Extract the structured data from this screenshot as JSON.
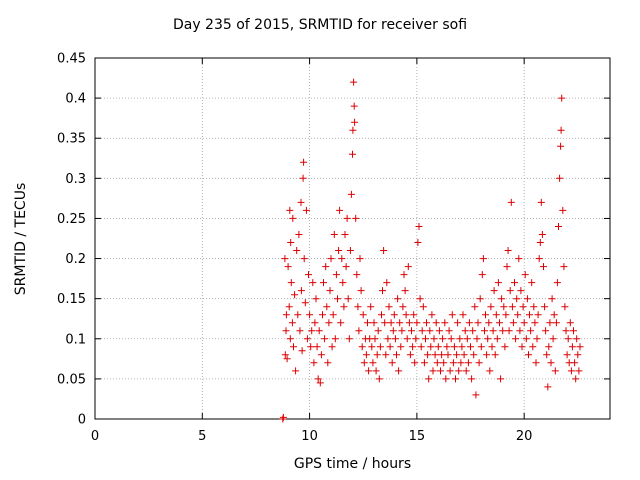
{
  "chart_data": {
    "type": "scatter",
    "title": "Day 235 of 2015, SRMTID for receiver sofi",
    "xlabel": "GPS time / hours",
    "ylabel": "SRMTID / TECUs",
    "xlim": [
      0,
      24
    ],
    "ylim": [
      0,
      0.45
    ],
    "xticks": [
      "0",
      "5",
      "10",
      "15",
      "20"
    ],
    "xtick_values": [
      0,
      5,
      10,
      15,
      20
    ],
    "yticks": [
      "0",
      "0.05",
      "0.1",
      "0.15",
      "0.2",
      "0.25",
      "0.3",
      "0.35",
      "0.4",
      "0.45"
    ],
    "ytick_values": [
      0,
      0.05,
      0.1,
      0.15,
      0.2,
      0.25,
      0.3,
      0.35,
      0.4,
      0.45
    ],
    "grid": true,
    "marker": "+",
    "color": "#dd0000",
    "series": [
      {
        "name": "SRMTID",
        "points": [
          [
            8.75,
            0.0
          ],
          [
            8.78,
            0.002
          ],
          [
            8.85,
            0.2
          ],
          [
            8.87,
            0.08
          ],
          [
            8.9,
            0.11
          ],
          [
            8.92,
            0.13
          ],
          [
            8.95,
            0.075
          ],
          [
            9.0,
            0.19
          ],
          [
            9.05,
            0.14
          ],
          [
            9.08,
            0.26
          ],
          [
            9.1,
            0.1
          ],
          [
            9.12,
            0.22
          ],
          [
            9.15,
            0.17
          ],
          [
            9.2,
            0.12
          ],
          [
            9.22,
            0.25
          ],
          [
            9.25,
            0.09
          ],
          [
            9.3,
            0.155
          ],
          [
            9.35,
            0.06
          ],
          [
            9.4,
            0.21
          ],
          [
            9.45,
            0.13
          ],
          [
            9.5,
            0.23
          ],
          [
            9.55,
            0.11
          ],
          [
            9.6,
            0.27
          ],
          [
            9.62,
            0.16
          ],
          [
            9.65,
            0.085
          ],
          [
            9.7,
            0.3
          ],
          [
            9.72,
            0.32
          ],
          [
            9.75,
            0.2
          ],
          [
            9.8,
            0.145
          ],
          [
            9.85,
            0.26
          ],
          [
            9.9,
            0.1
          ],
          [
            9.95,
            0.18
          ],
          [
            10.0,
            0.13
          ],
          [
            10.05,
            0.09
          ],
          [
            10.1,
            0.11
          ],
          [
            10.15,
            0.17
          ],
          [
            10.2,
            0.07
          ],
          [
            10.25,
            0.12
          ],
          [
            10.3,
            0.15
          ],
          [
            10.35,
            0.09
          ],
          [
            10.4,
            0.05
          ],
          [
            10.45,
            0.11
          ],
          [
            10.5,
            0.045
          ],
          [
            10.55,
            0.08
          ],
          [
            10.6,
            0.13
          ],
          [
            10.65,
            0.17
          ],
          [
            10.7,
            0.1
          ],
          [
            10.75,
            0.19
          ],
          [
            10.8,
            0.14
          ],
          [
            10.85,
            0.07
          ],
          [
            10.9,
            0.12
          ],
          [
            10.95,
            0.16
          ],
          [
            11.0,
            0.2
          ],
          [
            11.05,
            0.09
          ],
          [
            11.1,
            0.13
          ],
          [
            11.15,
            0.23
          ],
          [
            11.2,
            0.1
          ],
          [
            11.25,
            0.18
          ],
          [
            11.3,
            0.15
          ],
          [
            11.35,
            0.21
          ],
          [
            11.4,
            0.26
          ],
          [
            11.45,
            0.12
          ],
          [
            11.5,
            0.2
          ],
          [
            11.55,
            0.17
          ],
          [
            11.6,
            0.14
          ],
          [
            11.65,
            0.23
          ],
          [
            11.7,
            0.19
          ],
          [
            11.75,
            0.25
          ],
          [
            11.8,
            0.15
          ],
          [
            11.85,
            0.1
          ],
          [
            11.9,
            0.21
          ],
          [
            11.95,
            0.28
          ],
          [
            12.0,
            0.33
          ],
          [
            12.02,
            0.36
          ],
          [
            12.05,
            0.42
          ],
          [
            12.08,
            0.39
          ],
          [
            12.1,
            0.37
          ],
          [
            12.15,
            0.25
          ],
          [
            12.2,
            0.18
          ],
          [
            12.25,
            0.14
          ],
          [
            12.3,
            0.11
          ],
          [
            12.35,
            0.2
          ],
          [
            12.4,
            0.16
          ],
          [
            12.45,
            0.09
          ],
          [
            12.5,
            0.13
          ],
          [
            12.55,
            0.07
          ],
          [
            12.6,
            0.1
          ],
          [
            12.65,
            0.08
          ],
          [
            12.7,
            0.12
          ],
          [
            12.75,
            0.06
          ],
          [
            12.8,
            0.1
          ],
          [
            12.85,
            0.14
          ],
          [
            12.9,
            0.09
          ],
          [
            12.95,
            0.07
          ],
          [
            13.0,
            0.12
          ],
          [
            13.05,
            0.1
          ],
          [
            13.1,
            0.06
          ],
          [
            13.15,
            0.08
          ],
          [
            13.2,
            0.11
          ],
          [
            13.25,
            0.05
          ],
          [
            13.3,
            0.09
          ],
          [
            13.35,
            0.13
          ],
          [
            13.4,
            0.16
          ],
          [
            13.45,
            0.21
          ],
          [
            13.5,
            0.12
          ],
          [
            13.55,
            0.08
          ],
          [
            13.6,
            0.17
          ],
          [
            13.65,
            0.1
          ],
          [
            13.7,
            0.14
          ],
          [
            13.75,
            0.09
          ],
          [
            13.8,
            0.12
          ],
          [
            13.85,
            0.07
          ],
          [
            13.9,
            0.11
          ],
          [
            13.95,
            0.13
          ],
          [
            14.0,
            0.1
          ],
          [
            14.05,
            0.08
          ],
          [
            14.1,
            0.15
          ],
          [
            14.15,
            0.06
          ],
          [
            14.2,
            0.12
          ],
          [
            14.25,
            0.09
          ],
          [
            14.3,
            0.11
          ],
          [
            14.35,
            0.14
          ],
          [
            14.4,
            0.18
          ],
          [
            14.45,
            0.16
          ],
          [
            14.5,
            0.13
          ],
          [
            14.55,
            0.1
          ],
          [
            14.6,
            0.19
          ],
          [
            14.65,
            0.12
          ],
          [
            14.7,
            0.08
          ],
          [
            14.75,
            0.11
          ],
          [
            14.8,
            0.09
          ],
          [
            14.85,
            0.13
          ],
          [
            14.9,
            0.07
          ],
          [
            14.95,
            0.1
          ],
          [
            15.0,
            0.12
          ],
          [
            15.05,
            0.22
          ],
          [
            15.1,
            0.24
          ],
          [
            15.15,
            0.15
          ],
          [
            15.2,
            0.09
          ],
          [
            15.25,
            0.11
          ],
          [
            15.3,
            0.14
          ],
          [
            15.35,
            0.07
          ],
          [
            15.4,
            0.1
          ],
          [
            15.45,
            0.12
          ],
          [
            15.5,
            0.08
          ],
          [
            15.55,
            0.05
          ],
          [
            15.6,
            0.11
          ],
          [
            15.65,
            0.09
          ],
          [
            15.7,
            0.13
          ],
          [
            15.75,
            0.06
          ],
          [
            15.8,
            0.1
          ],
          [
            15.85,
            0.08
          ],
          [
            15.9,
            0.12
          ],
          [
            15.95,
            0.07
          ],
          [
            16.0,
            0.09
          ],
          [
            16.05,
            0.11
          ],
          [
            16.1,
            0.06
          ],
          [
            16.15,
            0.08
          ],
          [
            16.2,
            0.1
          ],
          [
            16.25,
            0.07
          ],
          [
            16.3,
            0.12
          ],
          [
            16.35,
            0.05
          ],
          [
            16.4,
            0.09
          ],
          [
            16.45,
            0.08
          ],
          [
            16.5,
            0.11
          ],
          [
            16.55,
            0.06
          ],
          [
            16.6,
            0.1
          ],
          [
            16.65,
            0.13
          ],
          [
            16.7,
            0.07
          ],
          [
            16.75,
            0.09
          ],
          [
            16.8,
            0.05
          ],
          [
            16.85,
            0.08
          ],
          [
            16.9,
            0.12
          ],
          [
            16.95,
            0.06
          ],
          [
            17.0,
            0.1
          ],
          [
            17.05,
            0.07
          ],
          [
            17.1,
            0.09
          ],
          [
            17.15,
            0.13
          ],
          [
            17.2,
            0.08
          ],
          [
            17.25,
            0.11
          ],
          [
            17.3,
            0.06
          ],
          [
            17.35,
            0.1
          ],
          [
            17.4,
            0.07
          ],
          [
            17.45,
            0.12
          ],
          [
            17.5,
            0.09
          ],
          [
            17.55,
            0.05
          ],
          [
            17.6,
            0.11
          ],
          [
            17.65,
            0.08
          ],
          [
            17.7,
            0.14
          ],
          [
            17.75,
            0.03
          ],
          [
            17.8,
            0.1
          ],
          [
            17.85,
            0.12
          ],
          [
            17.9,
            0.07
          ],
          [
            17.95,
            0.15
          ],
          [
            18.0,
            0.09
          ],
          [
            18.05,
            0.18
          ],
          [
            18.1,
            0.2
          ],
          [
            18.15,
            0.11
          ],
          [
            18.2,
            0.13
          ],
          [
            18.25,
            0.08
          ],
          [
            18.3,
            0.1
          ],
          [
            18.35,
            0.12
          ],
          [
            18.4,
            0.06
          ],
          [
            18.45,
            0.14
          ],
          [
            18.5,
            0.09
          ],
          [
            18.55,
            0.11
          ],
          [
            18.6,
            0.16
          ],
          [
            18.65,
            0.08
          ],
          [
            18.7,
            0.13
          ],
          [
            18.75,
            0.1
          ],
          [
            18.8,
            0.17
          ],
          [
            18.85,
            0.12
          ],
          [
            18.9,
            0.05
          ],
          [
            18.95,
            0.15
          ],
          [
            19.0,
            0.11
          ],
          [
            19.05,
            0.14
          ],
          [
            19.1,
            0.09
          ],
          [
            19.15,
            0.13
          ],
          [
            19.2,
            0.19
          ],
          [
            19.25,
            0.21
          ],
          [
            19.3,
            0.11
          ],
          [
            19.35,
            0.16
          ],
          [
            19.4,
            0.27
          ],
          [
            19.45,
            0.14
          ],
          [
            19.5,
            0.12
          ],
          [
            19.55,
            0.17
          ],
          [
            19.6,
            0.1
          ],
          [
            19.65,
            0.15
          ],
          [
            19.7,
            0.13
          ],
          [
            19.75,
            0.2
          ],
          [
            19.8,
            0.11
          ],
          [
            19.85,
            0.16
          ],
          [
            19.9,
            0.09
          ],
          [
            19.95,
            0.14
          ],
          [
            20.0,
            0.12
          ],
          [
            20.05,
            0.18
          ],
          [
            20.1,
            0.1
          ],
          [
            20.15,
            0.15
          ],
          [
            20.2,
            0.08
          ],
          [
            20.25,
            0.13
          ],
          [
            20.3,
            0.11
          ],
          [
            20.35,
            0.17
          ],
          [
            20.4,
            0.09
          ],
          [
            20.45,
            0.14
          ],
          [
            20.5,
            0.12
          ],
          [
            20.55,
            0.07
          ],
          [
            20.6,
            0.1
          ],
          [
            20.65,
            0.13
          ],
          [
            20.7,
            0.2
          ],
          [
            20.75,
            0.22
          ],
          [
            20.8,
            0.27
          ],
          [
            20.85,
            0.23
          ],
          [
            20.9,
            0.19
          ],
          [
            20.95,
            0.14
          ],
          [
            21.0,
            0.11
          ],
          [
            21.05,
            0.08
          ],
          [
            21.1,
            0.04
          ],
          [
            21.15,
            0.09
          ],
          [
            21.2,
            0.12
          ],
          [
            21.25,
            0.07
          ],
          [
            21.3,
            0.15
          ],
          [
            21.35,
            0.1
          ],
          [
            21.4,
            0.13
          ],
          [
            21.45,
            0.06
          ],
          [
            21.5,
            0.12
          ],
          [
            21.55,
            0.17
          ],
          [
            21.6,
            0.24
          ],
          [
            21.65,
            0.3
          ],
          [
            21.7,
            0.34
          ],
          [
            21.72,
            0.36
          ],
          [
            21.75,
            0.4
          ],
          [
            21.8,
            0.26
          ],
          [
            21.85,
            0.19
          ],
          [
            21.9,
            0.14
          ],
          [
            21.95,
            0.11
          ],
          [
            22.0,
            0.08
          ],
          [
            22.05,
            0.1
          ],
          [
            22.1,
            0.07
          ],
          [
            22.15,
            0.12
          ],
          [
            22.2,
            0.06
          ],
          [
            22.25,
            0.09
          ],
          [
            22.3,
            0.11
          ],
          [
            22.35,
            0.07
          ],
          [
            22.4,
            0.05
          ],
          [
            22.45,
            0.1
          ],
          [
            22.5,
            0.08
          ],
          [
            22.55,
            0.06
          ],
          [
            22.6,
            0.09
          ]
        ]
      }
    ]
  }
}
